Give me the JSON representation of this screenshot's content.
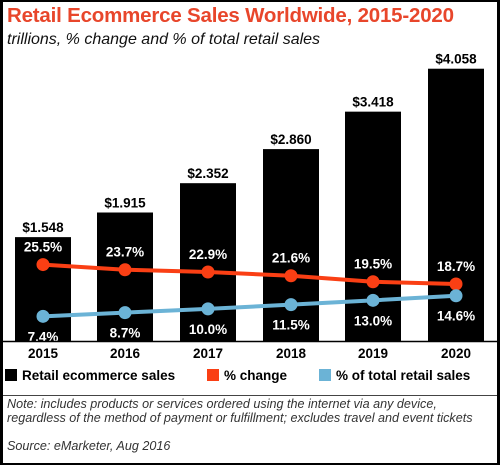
{
  "title": "Retail Ecommerce Sales Worldwide, 2015-2020",
  "subtitle": "trillions, % change and % of total retail sales",
  "note": "Note: includes products or services ordered using the internet via any device, regardless of the method of payment or fulfillment; excludes travel and event tickets",
  "source": "Source: eMarketer, Aug 2016",
  "colors": {
    "bar": "#000000",
    "pct_change": "#fa3f14",
    "pct_total": "#6bb3d6",
    "title": "#e8462b"
  },
  "chart_data": {
    "type": "bar",
    "categories": [
      "2015",
      "2016",
      "2017",
      "2018",
      "2019",
      "2020"
    ],
    "series": [
      {
        "name": "Retail ecommerce sales",
        "type": "bar",
        "values": [
          1.548,
          1.915,
          2.352,
          2.86,
          3.418,
          4.058
        ],
        "labels": [
          "$1.548",
          "$1.915",
          "$2.352",
          "$2.860",
          "$3.418",
          "$4.058"
        ]
      },
      {
        "name": "% change",
        "type": "line",
        "values": [
          25.5,
          23.7,
          22.9,
          21.6,
          19.5,
          18.7
        ],
        "labels": [
          "25.5%",
          "23.7%",
          "22.9%",
          "21.6%",
          "19.5%",
          "18.7%"
        ]
      },
      {
        "name": "% of total retail sales",
        "type": "line",
        "values": [
          7.4,
          8.7,
          10.0,
          11.5,
          13.0,
          14.6
        ],
        "labels": [
          "7.4%",
          "8.7%",
          "10.0%",
          "11.5%",
          "13.0%",
          "14.6%"
        ]
      }
    ],
    "title": "Retail Ecommerce Sales Worldwide, 2015-2020",
    "subtitle": "trillions, % change and % of total retail sales",
    "legend_position": "bottom",
    "grid": false
  }
}
